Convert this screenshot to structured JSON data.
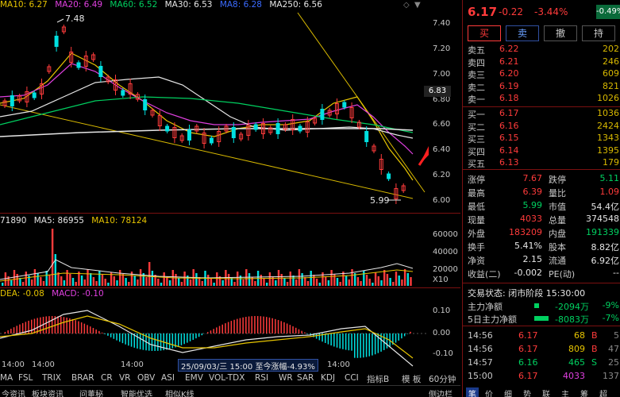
{
  "legend": {
    "ma10": "MA10: 6.27",
    "ma20": "MA20: 6.49",
    "ma60": "MA60: 6.52",
    "ma30": "MA30: 6.53",
    "ma8": "MA8: 6.28",
    "ma250": "MA250: 6.56"
  },
  "price_axis": [
    "7.40",
    "7.20",
    "7.00",
    "6.80",
    "6.60",
    "6.40",
    "6.20",
    "6.00"
  ],
  "current_price_tag": "6.83",
  "annotations": {
    "high": "7.48",
    "low": "5.99"
  },
  "volume_legend": {
    "vol": "71890",
    "ma5": "MA5: 86955",
    "ma10": "MA10: 78124"
  },
  "volume_axis": [
    "60000",
    "40000",
    "20000",
    "X10"
  ],
  "macd_legend": {
    "dea": "DEA: -0.08",
    "macd": "MACD: -0.10"
  },
  "macd_axis": [
    "0.10",
    "0.00",
    "-0.10"
  ],
  "time_labels": [
    "14:00",
    "14:00",
    "14:00",
    "14:00"
  ],
  "info_bar": "25/09/03/三 15:00  至今涨幅-4.93%",
  "indicators": [
    "MA",
    "FSL",
    "TRIX",
    "BRAR",
    "CR",
    "VR",
    "OBV",
    "ASI",
    "EMV",
    "VOL-TDX",
    "RSI",
    "WR",
    "SAR",
    "KDJ",
    "CCI"
  ],
  "indicator_right": [
    "指标B",
    "模 板",
    "60分钟"
  ],
  "bottom_tabs": [
    "今资讯",
    "板块资讯",
    "问董秘",
    "智能优选",
    "相似K线"
  ],
  "bottom_right_tab": "侧边栏",
  "quote": {
    "price": "6.17",
    "change": "-0.22",
    "pct": "-3.44%",
    "badge": "-0.49%"
  },
  "trade_buttons": [
    "买",
    "卖",
    "撤",
    "持"
  ],
  "asks": [
    {
      "label": "卖五",
      "price": "6.22",
      "vol": "202"
    },
    {
      "label": "卖四",
      "price": "6.21",
      "vol": "246"
    },
    {
      "label": "卖三",
      "price": "6.20",
      "vol": "609"
    },
    {
      "label": "卖二",
      "price": "6.19",
      "vol": "821"
    },
    {
      "label": "卖一",
      "price": "6.18",
      "vol": "1026"
    }
  ],
  "bids": [
    {
      "label": "买一",
      "price": "6.17",
      "vol": "1036"
    },
    {
      "label": "买二",
      "price": "6.16",
      "vol": "2424"
    },
    {
      "label": "买三",
      "price": "6.15",
      "vol": "1343"
    },
    {
      "label": "买四",
      "price": "6.14",
      "vol": "1395"
    },
    {
      "label": "买五",
      "price": "6.13",
      "vol": "179"
    }
  ],
  "stats": [
    {
      "l1": "涨停",
      "v1": "7.67",
      "l2": "跌停",
      "v2": "5.11"
    },
    {
      "l1": "最高",
      "v1": "6.39",
      "l2": "量比",
      "v2": "1.09"
    },
    {
      "l1": "最低",
      "v1": "5.99",
      "l2": "市值",
      "v2": "54.4亿"
    },
    {
      "l1": "现量",
      "v1": "4033",
      "l2": "总量",
      "v2": "374548"
    },
    {
      "l1": "外盘",
      "v1": "183209",
      "l2": "内盘",
      "v2": "191339"
    },
    {
      "l1": "换手",
      "v1": "5.41%",
      "l2": "股本",
      "v2": "8.82亿"
    },
    {
      "l1": "净资",
      "v1": "2.15",
      "l2": "流通",
      "v2": "6.92亿"
    },
    {
      "l1": "收益(二)",
      "v1": "-0.002",
      "l2": "PE(动)",
      "v2": "--"
    }
  ],
  "trade_status": "交易状态: 闭市阶段 15:30:00",
  "capital": [
    {
      "label": "主力净额",
      "value": "-2094万",
      "pct": "-9%"
    },
    {
      "label": "5日主力净额",
      "value": "-8083万",
      "pct": "-7%"
    }
  ],
  "ticks": [
    {
      "time": "14:56",
      "price": "6.17",
      "vol": "68",
      "side": "B",
      "n": "5"
    },
    {
      "time": "14:56",
      "price": "6.17",
      "vol": "809",
      "side": "B",
      "n": "47"
    },
    {
      "time": "14:57",
      "price": "6.16",
      "vol": "465",
      "side": "S",
      "n": "25"
    },
    {
      "time": "15:00",
      "price": "6.17",
      "vol": "4033",
      "side": "",
      "n": "137"
    }
  ],
  "right_bottom_tabs": [
    "笔",
    "价",
    "细",
    "势",
    "联",
    "主",
    "筹",
    "超"
  ],
  "colors": {
    "up": "#ff3b3b",
    "down": "#00e0e0",
    "accent": "#7a1010"
  }
}
